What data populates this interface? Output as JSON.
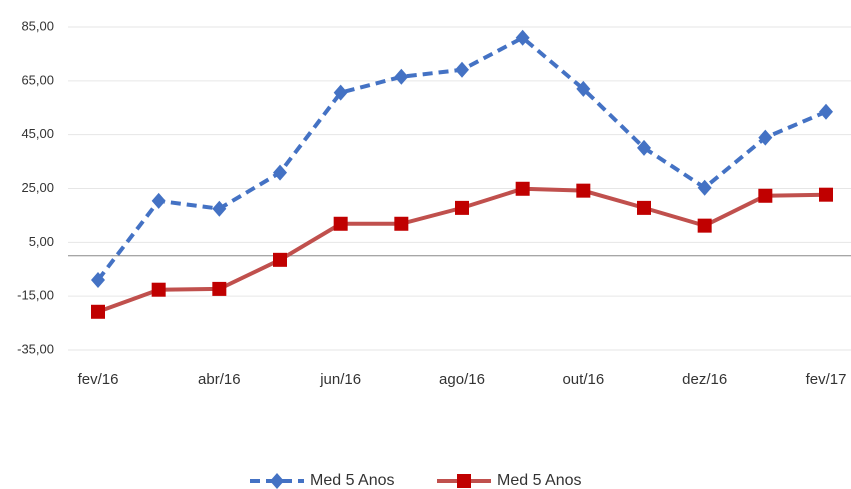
{
  "chart_data": {
    "type": "line",
    "categories": [
      "fev/16",
      null,
      "abr/16",
      null,
      "jun/16",
      null,
      "ago/16",
      null,
      "out/16",
      null,
      "dez/16",
      null,
      "fev/17"
    ],
    "series": [
      {
        "name": "Med 5 Anos",
        "color": "#4472c4",
        "dash": true,
        "marker": "diamond",
        "values": [
          -9,
          20.4,
          17.5,
          30.9,
          60.6,
          66.5,
          69.1,
          81,
          62,
          40.1,
          25.3,
          43.9,
          53.5
        ]
      },
      {
        "name": "Med 5 Anos",
        "color": "#c0504d",
        "dash": false,
        "marker": "square",
        "marker_color": "#c00000",
        "values": [
          -20.8,
          -12.6,
          -12.3,
          -1.5,
          11.9,
          11.9,
          17.8,
          24.9,
          24.2,
          17.8,
          11.2,
          22.3,
          22.7
        ]
      }
    ],
    "ylim": [
      -35,
      85
    ],
    "yticks": [
      {
        "value": -35,
        "label": "-35,00"
      },
      {
        "value": -15,
        "label": "-15,00"
      },
      {
        "value": 5,
        "label": "5,00"
      },
      {
        "value": 25,
        "label": "25,00"
      },
      {
        "value": 45,
        "label": "45,00"
      },
      {
        "value": 65,
        "label": "65,00"
      },
      {
        "value": 85,
        "label": "85,00"
      }
    ],
    "grid": true,
    "legend": "bottom"
  }
}
